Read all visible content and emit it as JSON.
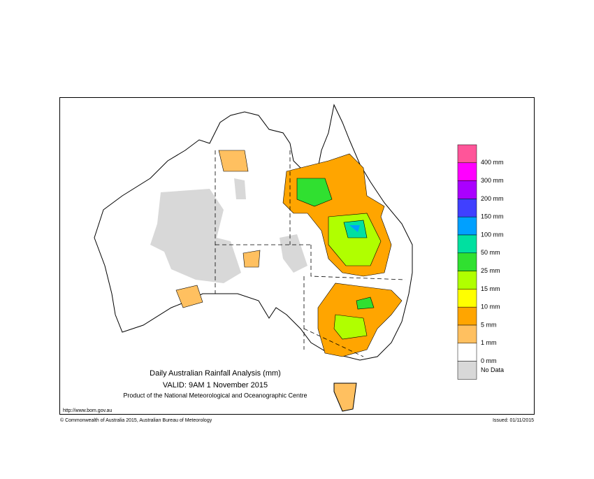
{
  "map": {
    "title": "Daily Australian Rainfall Analysis (mm)",
    "valid": "VALID: 9AM  1 November 2015",
    "product": "Product of the National Meteorological and Oceanographic Centre",
    "url": "http://www.bom.gov.au",
    "copyright": "© Commonwealth of Australia 2015, Australian Bureau of Meteorology",
    "issued": "Issued: 01/11/2015",
    "legend": {
      "colors": [
        "#ff5599",
        "#ff00ff",
        "#aa00ff",
        "#4040ff",
        "#00a0ff",
        "#00e0a0",
        "#30e030",
        "#b0ff00",
        "#ffff00",
        "#ffa500",
        "#ffc060",
        "#ffffff",
        "#d8d8d8"
      ],
      "labels": [
        "400 mm",
        "300 mm",
        "200 mm",
        "150 mm",
        "100 mm",
        "50 mm",
        "25 mm",
        "15 mm",
        "10 mm",
        "5 mm",
        "1 mm",
        "0 mm"
      ],
      "no_data": "No Data"
    }
  }
}
